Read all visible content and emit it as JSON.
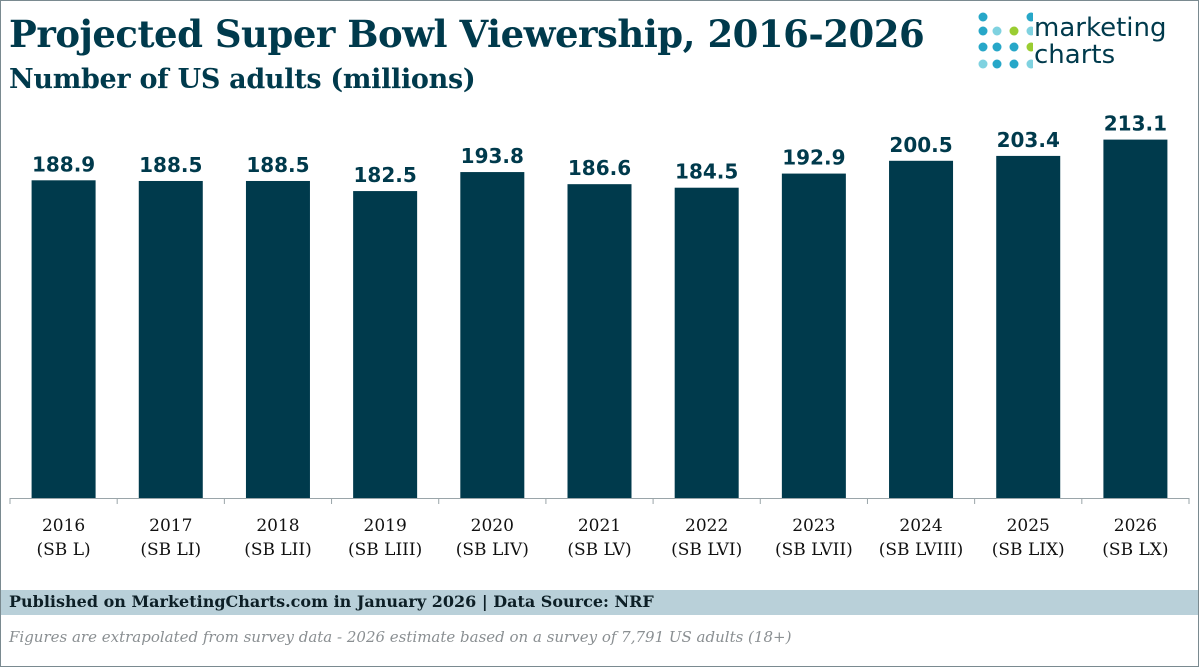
{
  "header": {
    "title": "Projected Super Bowl Viewership, 2016-2026",
    "subtitle": "Number of US adults (millions)"
  },
  "logo": {
    "line1": "marketing",
    "line2": "charts",
    "colors": {
      "teal": "#27a7c8",
      "light_teal": "#7fd2e0",
      "green": "#9acd32",
      "text": "#003a4c"
    }
  },
  "colors": {
    "bar": "#003a4c",
    "title": "#003a4c",
    "axis": "#9aa5a9",
    "footer_bg": "#b9d0d9"
  },
  "chart_data": {
    "type": "bar",
    "title": "Projected Super Bowl Viewership, 2016-2026",
    "subtitle": "Number of US adults (millions)",
    "categories": [
      [
        "2016",
        "(SB L)"
      ],
      [
        "2017",
        "(SB LI)"
      ],
      [
        "2018",
        "(SB LII)"
      ],
      [
        "2019",
        "(SB LIII)"
      ],
      [
        "2020",
        "(SB LIV)"
      ],
      [
        "2021",
        "(SB LV)"
      ],
      [
        "2022",
        "(SB LVI)"
      ],
      [
        "2023",
        "(SB LVII)"
      ],
      [
        "2024",
        "(SB LVIII)"
      ],
      [
        "2025",
        "(SB LIX)"
      ],
      [
        "2026",
        "(SB LX)"
      ]
    ],
    "values": [
      188.9,
      188.5,
      188.5,
      182.5,
      193.8,
      186.6,
      184.5,
      192.9,
      200.5,
      203.4,
      213.1
    ],
    "value_labels": [
      "188.9",
      "188.5",
      "188.5",
      "182.5",
      "193.8",
      "186.6",
      "184.5",
      "192.9",
      "200.5",
      "203.4",
      "213.1"
    ],
    "xlabel": "",
    "ylabel": "",
    "ylim": [
      0,
      220
    ],
    "grid": false,
    "legend": "none"
  },
  "footer": {
    "published": "Published on MarketingCharts.com in January 2026 | Data Source: NRF",
    "note": "Figures are extrapolated from survey data - 2026 estimate based on a survey of 7,791 US adults (18+)"
  }
}
